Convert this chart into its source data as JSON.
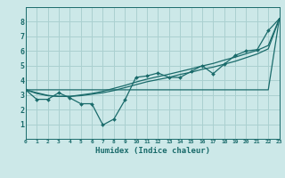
{
  "xlabel": "Humidex (Indice chaleur)",
  "bg_color": "#cce8e8",
  "grid_color": "#aad0d0",
  "line_color": "#1a6b6b",
  "x_data": [
    0,
    1,
    2,
    3,
    4,
    5,
    6,
    7,
    8,
    9,
    10,
    11,
    12,
    13,
    14,
    15,
    16,
    17,
    18,
    19,
    20,
    21,
    22,
    23
  ],
  "y_jagged": [
    3.35,
    2.7,
    2.7,
    3.15,
    2.8,
    2.4,
    2.4,
    0.95,
    1.35,
    2.65,
    4.2,
    4.3,
    4.5,
    4.2,
    4.2,
    4.6,
    5.0,
    4.45,
    5.1,
    5.7,
    6.0,
    6.1,
    7.4,
    8.2
  ],
  "y_line1": [
    3.35,
    3.35,
    3.35,
    3.35,
    3.35,
    3.35,
    3.35,
    3.35,
    3.35,
    3.35,
    3.35,
    3.35,
    3.35,
    3.35,
    3.35,
    3.35,
    3.35,
    3.35,
    3.35,
    3.35,
    3.35,
    3.35,
    3.35,
    8.2
  ],
  "y_line2": [
    3.35,
    3.1,
    2.95,
    2.9,
    2.9,
    2.95,
    3.05,
    3.15,
    3.3,
    3.5,
    3.7,
    3.9,
    4.05,
    4.2,
    4.4,
    4.55,
    4.75,
    4.9,
    5.1,
    5.3,
    5.55,
    5.8,
    6.15,
    8.2
  ],
  "y_linear": [
    3.35,
    3.15,
    2.97,
    2.9,
    2.9,
    3.0,
    3.1,
    3.25,
    3.45,
    3.65,
    3.88,
    4.08,
    4.25,
    4.42,
    4.6,
    4.78,
    4.98,
    5.15,
    5.38,
    5.58,
    5.82,
    6.05,
    6.38,
    8.2
  ],
  "xlim": [
    0,
    23
  ],
  "ylim": [
    0,
    9
  ],
  "yticks": [
    1,
    2,
    3,
    4,
    5,
    6,
    7,
    8
  ],
  "xticks": [
    0,
    1,
    2,
    3,
    4,
    5,
    6,
    7,
    8,
    9,
    10,
    11,
    12,
    13,
    14,
    15,
    16,
    17,
    18,
    19,
    20,
    21,
    22,
    23
  ],
  "xtick_labels": [
    "0",
    "1",
    "2",
    "3",
    "4",
    "5",
    "6",
    "7",
    "8",
    "9",
    "10",
    "11",
    "12",
    "13",
    "14",
    "15",
    "16",
    "17",
    "18",
    "19",
    "20",
    "21",
    "22",
    "23"
  ]
}
